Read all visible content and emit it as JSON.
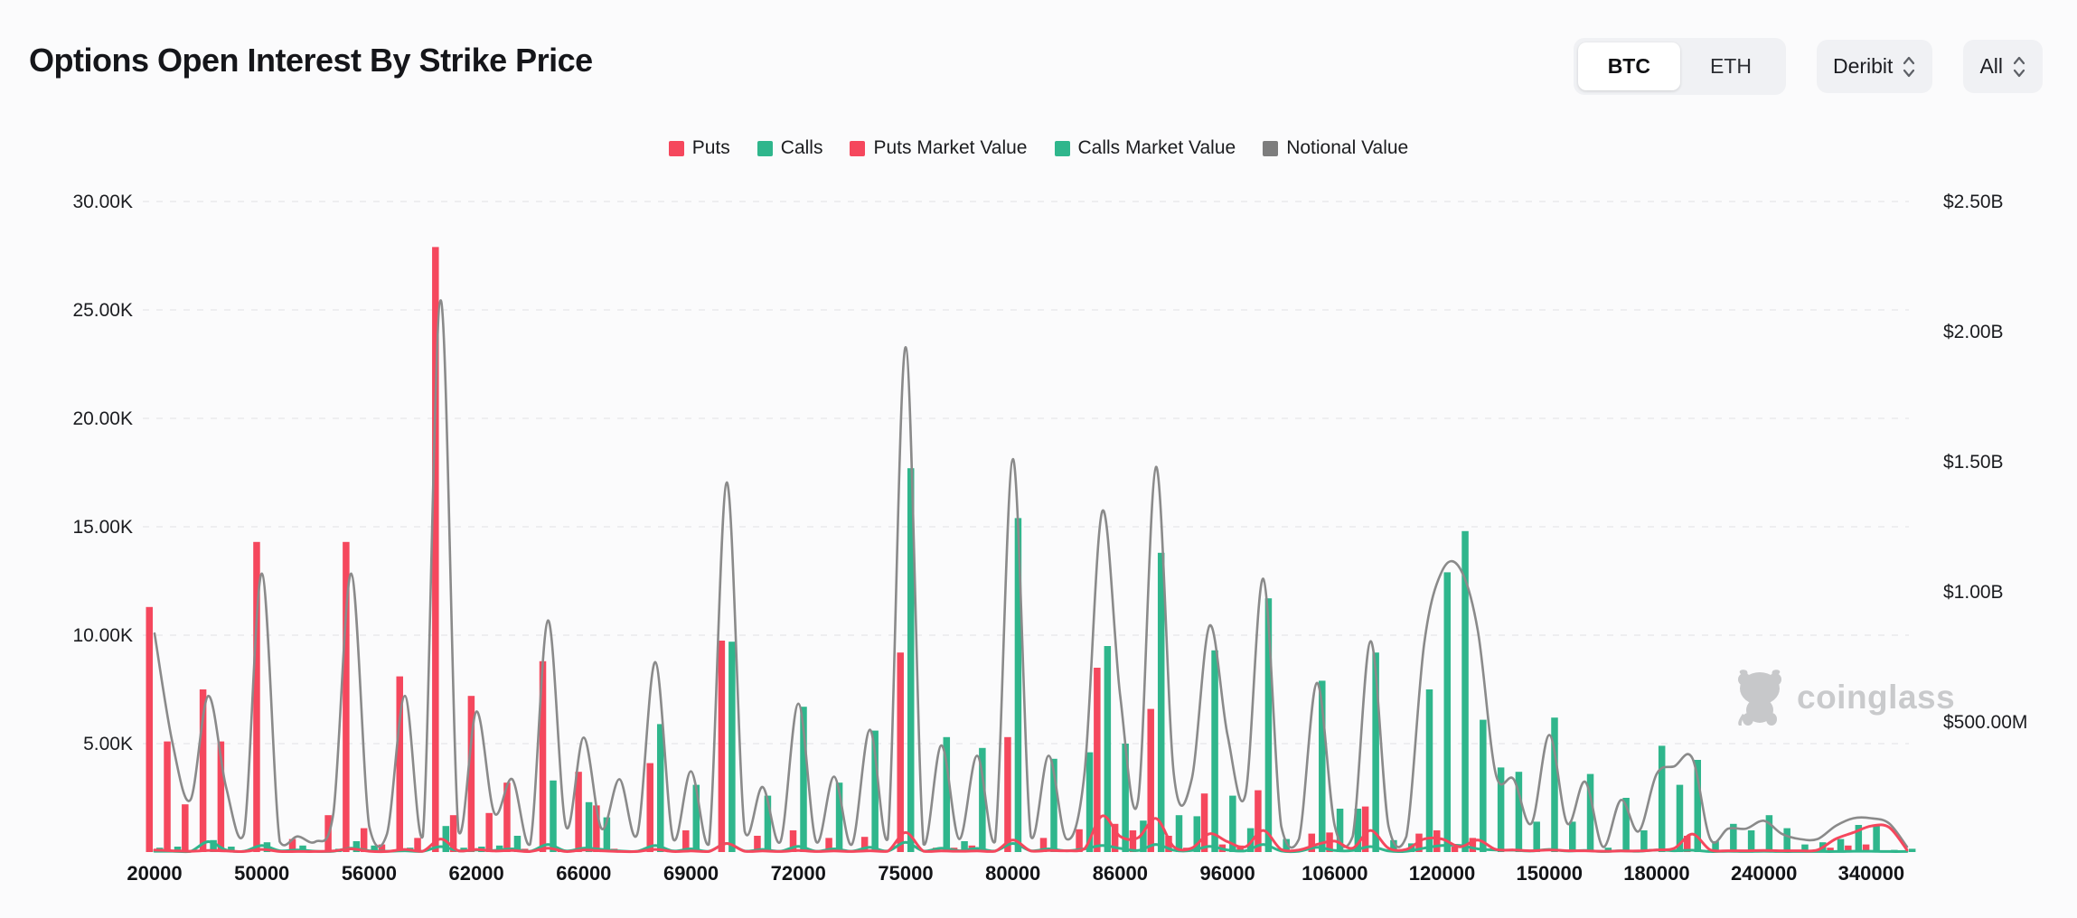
{
  "header": {
    "title": "Options Open Interest By Strike Price",
    "asset_toggle": {
      "options": [
        "BTC",
        "ETH"
      ],
      "selected": "BTC"
    },
    "exchange_select": {
      "value": "Deribit"
    },
    "range_select": {
      "value": "All"
    }
  },
  "legend": [
    {
      "label": "Puts",
      "color": "#f5475d"
    },
    {
      "label": "Calls",
      "color": "#2fb68c"
    },
    {
      "label": "Puts Market Value",
      "color": "#f5475d"
    },
    {
      "label": "Calls Market Value",
      "color": "#2fb68c"
    },
    {
      "label": "Notional Value",
      "color": "#7d7d7d"
    }
  ],
  "watermark": {
    "text": "coinglass"
  },
  "colors": {
    "puts_bar": "#f5475d",
    "calls_bar": "#2fb68c",
    "notional_line": "#8a8a8a",
    "puts_mv_line": "#f5475d",
    "calls_mv_line": "#2fb68c",
    "gridline": "#e9eaec",
    "axis_text": "#1b1c20",
    "watermark_gray": "#c7c8ca"
  },
  "chart_data": {
    "type": "bar",
    "subtype": "combo-bar-line",
    "title": "Options Open Interest By Strike Price",
    "grid": "horizontal-dashed",
    "legend_position": "top-center",
    "left_axis": {
      "unit": "contracts",
      "min": 0,
      "max": 30000,
      "ticks": [
        {
          "label": "30.00K",
          "value_k": 30
        },
        {
          "label": "25.00K",
          "value_k": 25
        },
        {
          "label": "20.00K",
          "value_k": 20
        },
        {
          "label": "15.00K",
          "value_k": 15
        },
        {
          "label": "10.00K",
          "value_k": 10
        },
        {
          "label": "5.00K",
          "value_k": 5
        }
      ]
    },
    "right_axis": {
      "unit": "USD",
      "min": 0,
      "max": 2500000000,
      "ticks": [
        {
          "label": "$2.50B",
          "value_b": 2.5
        },
        {
          "label": "$2.00B",
          "value_b": 2.0
        },
        {
          "label": "$1.50B",
          "value_b": 1.5
        },
        {
          "label": "$1.00B",
          "value_b": 1.0
        },
        {
          "label": "$500.00M",
          "value_b": 0.5
        }
      ]
    },
    "x_axis": {
      "tick_labels": [
        "20000",
        "50000",
        "56000",
        "62000",
        "66000",
        "69000",
        "72000",
        "75000",
        "80000",
        "86000",
        "96000",
        "106000",
        "120000",
        "150000",
        "180000",
        "240000",
        "340000"
      ],
      "tick_every_n_bars": 6,
      "categories_count": 99
    },
    "series": [
      {
        "name": "Puts",
        "type": "bar",
        "axis": "left",
        "unit": "K contracts",
        "values": [
          11.3,
          5.1,
          2.2,
          7.5,
          5.1,
          0,
          14.3,
          0,
          0.6,
          0,
          1.7,
          14.3,
          1.1,
          0.35,
          8.1,
          0.65,
          27.9,
          1.7,
          7.2,
          1.8,
          3.2,
          0.15,
          8.8,
          0.1,
          3.7,
          2.15,
          0.15,
          0,
          4.1,
          0,
          1.0,
          0,
          9.75,
          0,
          0.75,
          0,
          1.0,
          0,
          0.65,
          0,
          0.7,
          0,
          9.2,
          0,
          0.2,
          0.2,
          0.3,
          0,
          5.3,
          0,
          0.65,
          0,
          1.05,
          8.5,
          1.3,
          1.0,
          6.6,
          0.75,
          0.2,
          2.7,
          0.35,
          0.3,
          2.85,
          0,
          0,
          0.85,
          0.9,
          0,
          2.1,
          0,
          0,
          0.85,
          1.0,
          0.25,
          0.65,
          0,
          0,
          0,
          0,
          0,
          0,
          0,
          0,
          0,
          0,
          0,
          0.75,
          0,
          0,
          0,
          0,
          0,
          0,
          0,
          0.2,
          0.3,
          0.35,
          0,
          0
        ]
      },
      {
        "name": "Calls",
        "type": "bar",
        "axis": "left",
        "unit": "K contracts",
        "values": [
          0.2,
          0.25,
          0.1,
          0.55,
          0.25,
          0,
          0.45,
          0,
          0.3,
          0,
          0.15,
          0.5,
          0.3,
          0,
          0.2,
          0,
          1.2,
          0.2,
          0.25,
          0.3,
          0.75,
          0,
          3.3,
          0,
          2.3,
          1.6,
          0,
          0,
          5.9,
          0,
          3.1,
          0,
          9.7,
          0,
          2.6,
          0,
          6.7,
          0,
          3.2,
          0,
          5.6,
          0,
          17.7,
          0,
          5.3,
          0.5,
          4.8,
          0,
          15.4,
          0,
          4.3,
          0,
          4.6,
          9.5,
          5.0,
          1.45,
          13.8,
          1.7,
          1.65,
          9.3,
          2.6,
          1.1,
          11.7,
          0.6,
          0,
          7.9,
          2.0,
          2.0,
          9.2,
          0.55,
          0.4,
          7.5,
          12.9,
          14.8,
          6.1,
          3.9,
          3.7,
          1.4,
          6.2,
          1.4,
          3.6,
          0.2,
          2.5,
          1.0,
          4.9,
          3.1,
          4.25,
          0.5,
          1.3,
          1.0,
          1.7,
          1.1,
          0.35,
          0.45,
          0.6,
          1.25,
          1.2,
          0.1,
          0.15
        ]
      },
      {
        "name": "Notional Value",
        "type": "line",
        "axis": "right",
        "unit": "$B",
        "values": [
          0.84,
          0.42,
          0.2,
          0.6,
          0.25,
          0.07,
          1.07,
          0.04,
          0.06,
          0.04,
          0.15,
          1.07,
          0.1,
          0.07,
          0.6,
          0.06,
          2.12,
          0.08,
          0.54,
          0.15,
          0.28,
          0.03,
          0.89,
          0.1,
          0.44,
          0.09,
          0.28,
          0.07,
          0.73,
          0.05,
          0.31,
          0.03,
          1.42,
          0.08,
          0.25,
          0.04,
          0.57,
          0.04,
          0.29,
          0.03,
          0.47,
          0.05,
          1.94,
          0.03,
          0.41,
          0.05,
          0.37,
          0.04,
          1.51,
          0.06,
          0.37,
          0.05,
          0.3,
          1.31,
          0.6,
          0.2,
          1.48,
          0.3,
          0.28,
          0.87,
          0.45,
          0.22,
          1.05,
          0.1,
          0.05,
          0.65,
          0.1,
          0.06,
          0.81,
          0.1,
          0.06,
          0.8,
          1.08,
          1.09,
          0.85,
          0.3,
          0.28,
          0.11,
          0.45,
          0.11,
          0.27,
          0.02,
          0.2,
          0.08,
          0.3,
          0.33,
          0.36,
          0.05,
          0.09,
          0.09,
          0.12,
          0.07,
          0.05,
          0.05,
          0.1,
          0.13,
          0.13,
          0.11,
          0.02
        ]
      },
      {
        "name": "Puts Market Value",
        "type": "line",
        "axis": "right",
        "unit": "$M",
        "values": [
          8,
          5,
          3,
          6,
          4,
          2,
          10,
          2,
          2,
          2,
          4,
          12,
          3,
          2,
          10,
          3,
          50,
          5,
          10,
          4,
          6,
          2,
          15,
          2,
          8,
          5,
          2,
          2,
          10,
          2,
          4,
          2,
          33,
          3,
          4,
          2,
          6,
          2,
          4,
          2,
          5,
          3,
          75,
          3,
          4,
          3,
          4,
          3,
          46,
          4,
          6,
          5,
          12,
          139,
          60,
          55,
          129,
          20,
          15,
          70,
          40,
          20,
          83,
          10,
          8,
          29,
          42,
          15,
          83,
          15,
          10,
          50,
          50,
          20,
          46,
          10,
          8,
          5,
          8,
          5,
          5,
          3,
          4,
          4,
          8,
          15,
          69,
          8,
          5,
          5,
          6,
          5,
          5,
          8,
          50,
          75,
          100,
          95,
          8
        ]
      },
      {
        "name": "Calls Market Value",
        "type": "line",
        "axis": "right",
        "unit": "$M",
        "values": [
          3,
          3,
          2,
          40,
          8,
          3,
          25,
          5,
          8,
          3,
          3,
          15,
          5,
          3,
          5,
          3,
          21,
          5,
          8,
          6,
          12,
          3,
          29,
          4,
          15,
          10,
          4,
          3,
          25,
          4,
          12,
          3,
          33,
          4,
          10,
          3,
          22,
          3,
          12,
          3,
          18,
          4,
          37,
          4,
          15,
          5,
          14,
          4,
          33,
          5,
          12,
          5,
          12,
          25,
          14,
          6,
          29,
          7,
          6,
          22,
          8,
          5,
          29,
          4,
          3,
          18,
          6,
          6,
          21,
          4,
          3,
          15,
          25,
          25,
          12,
          8,
          7,
          4,
          10,
          4,
          6,
          2,
          5,
          3,
          8,
          5,
          7,
          2,
          3,
          2,
          3,
          2,
          2,
          2,
          2,
          3,
          3,
          2,
          2
        ]
      }
    ]
  }
}
